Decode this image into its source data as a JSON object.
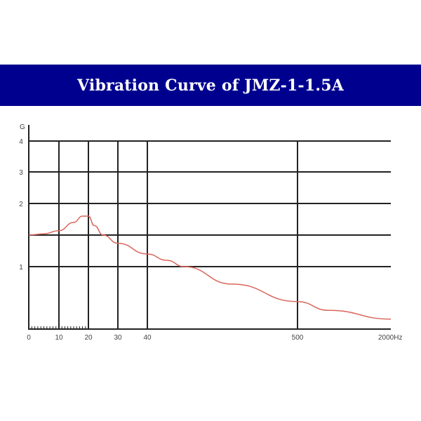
{
  "title": "Vibration Curve of JMZ-1-1.5A",
  "chart_data": {
    "type": "line",
    "title": "Vibration Curve of JMZ-1-1.5A",
    "ylabel": "G",
    "xunit": "Hz",
    "x_ticks": [
      0,
      10,
      20,
      30,
      40,
      500,
      2000
    ],
    "x_tick_labels": [
      "0",
      "10",
      "20",
      "30",
      "40",
      "500",
      "2000Hz"
    ],
    "y_ticks": [
      0,
      1,
      1.5,
      2,
      3,
      4
    ],
    "y_tick_labels": [
      "",
      "1",
      "",
      "2",
      "3",
      "4"
    ],
    "xlim": [
      0,
      2000
    ],
    "ylim": [
      0,
      4
    ],
    "grid": true,
    "line_color": "#d9665c",
    "series": [
      {
        "x": [
          0,
          5,
          10,
          15,
          18,
          20,
          22,
          25,
          30,
          40,
          100,
          152,
          300,
          500,
          1000,
          2000
        ],
        "y": [
          1.5,
          1.52,
          1.57,
          1.7,
          1.8,
          1.8,
          1.65,
          1.5,
          1.37,
          1.2,
          1.1,
          1.0,
          0.72,
          0.44,
          0.3,
          0.16
        ]
      }
    ]
  },
  "colors": {
    "banner": "#00008f",
    "grid": "#222222"
  }
}
